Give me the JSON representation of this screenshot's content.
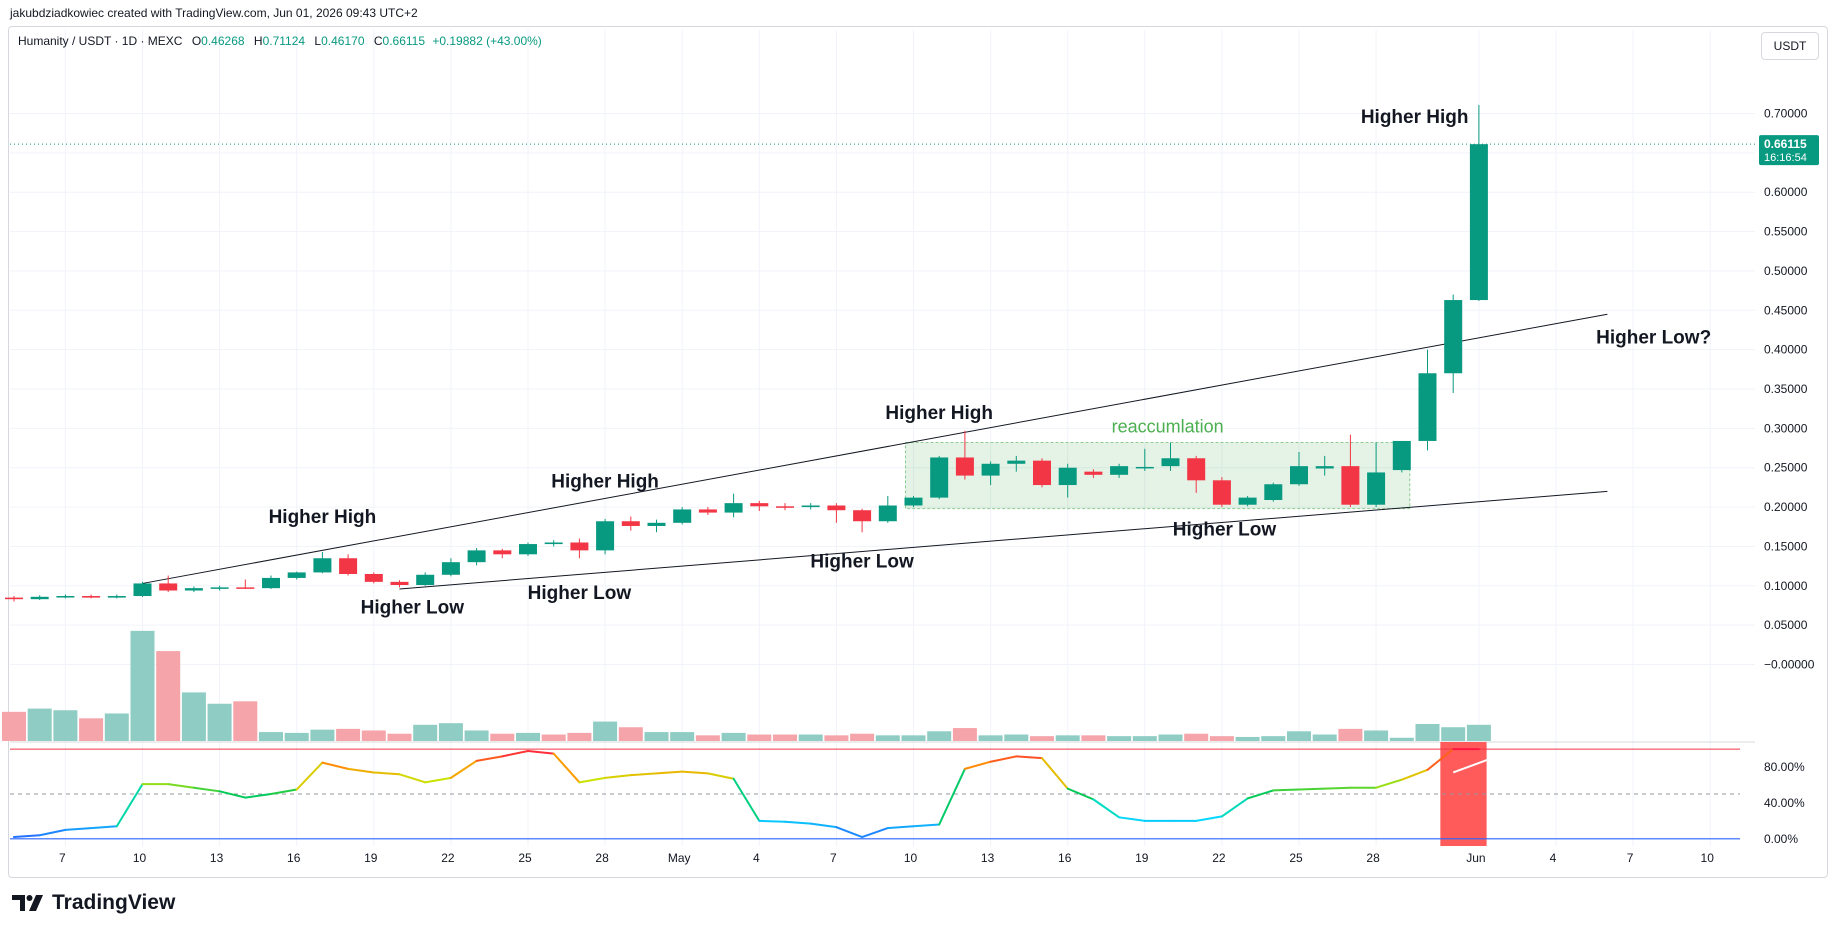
{
  "credit": "jakubdziadkowiec created with TradingView.com, Jun 01, 2026 09:43 UTC+2",
  "legend": {
    "symbol": "Humanity / USDT · 1D · MEXC",
    "o_label": "O",
    "o": "0.46268",
    "h_label": "H",
    "h": "0.71124",
    "l_label": "L",
    "l": "0.46170",
    "c_label": "C",
    "c": "0.66115",
    "change": "+0.19882 (+43.00%)"
  },
  "currency_button": "USDT",
  "price_tag": {
    "price": "0.66115",
    "countdown": "16:16:54"
  },
  "footer_brand": "TradingView",
  "colors": {
    "up": "#089981",
    "down": "#f23645",
    "vol_up": "#8fcdc4",
    "vol_down": "#f5a5aa",
    "box": "#4caf50"
  },
  "chart_data": {
    "type": "candlestick",
    "price_axis": {
      "ylim": [
        -0.04,
        0.74
      ],
      "ticks": [
        0.7,
        0.65,
        0.6,
        0.55,
        0.5,
        0.45,
        0.4,
        0.35,
        0.3,
        0.25,
        0.2,
        0.15,
        0.1,
        0.05,
        0.0
      ],
      "tick_labels": [
        "0.70000",
        "0.65000",
        "0.60000",
        "0.55000",
        "0.50000",
        "0.45000",
        "0.40000",
        "0.35000",
        "0.30000",
        "0.25000",
        "0.20000",
        "0.15000",
        "0.10000",
        "0.05000",
        "−0.00000"
      ]
    },
    "x_axis": {
      "labels": [
        {
          "i": 2,
          "text": "7"
        },
        {
          "i": 5,
          "text": "10"
        },
        {
          "i": 8,
          "text": "13"
        },
        {
          "i": 11,
          "text": "16"
        },
        {
          "i": 14,
          "text": "19"
        },
        {
          "i": 17,
          "text": "22"
        },
        {
          "i": 20,
          "text": "25"
        },
        {
          "i": 23,
          "text": "28"
        },
        {
          "i": 26,
          "text": "May"
        },
        {
          "i": 29,
          "text": "4"
        },
        {
          "i": 32,
          "text": "7"
        },
        {
          "i": 35,
          "text": "10"
        },
        {
          "i": 38,
          "text": "13"
        },
        {
          "i": 41,
          "text": "16"
        },
        {
          "i": 44,
          "text": "19"
        },
        {
          "i": 47,
          "text": "22"
        },
        {
          "i": 50,
          "text": "25"
        },
        {
          "i": 53,
          "text": "28"
        },
        {
          "i": 57,
          "text": "Jun"
        },
        {
          "i": 60,
          "text": "4"
        },
        {
          "i": 63,
          "text": "7"
        },
        {
          "i": 66,
          "text": "10"
        }
      ]
    },
    "candles": [
      {
        "o": 0.085,
        "h": 0.087,
        "l": 0.08,
        "c": 0.083
      },
      {
        "o": 0.083,
        "h": 0.088,
        "l": 0.082,
        "c": 0.086
      },
      {
        "o": 0.086,
        "h": 0.089,
        "l": 0.084,
        "c": 0.087
      },
      {
        "o": 0.087,
        "h": 0.089,
        "l": 0.084,
        "c": 0.085
      },
      {
        "o": 0.085,
        "h": 0.089,
        "l": 0.084,
        "c": 0.087
      },
      {
        "o": 0.087,
        "h": 0.105,
        "l": 0.086,
        "c": 0.103
      },
      {
        "o": 0.103,
        "h": 0.113,
        "l": 0.092,
        "c": 0.094
      },
      {
        "o": 0.094,
        "h": 0.099,
        "l": 0.092,
        "c": 0.097
      },
      {
        "o": 0.097,
        "h": 0.1,
        "l": 0.094,
        "c": 0.098
      },
      {
        "o": 0.098,
        "h": 0.108,
        "l": 0.096,
        "c": 0.097
      },
      {
        "o": 0.097,
        "h": 0.113,
        "l": 0.096,
        "c": 0.11
      },
      {
        "o": 0.11,
        "h": 0.118,
        "l": 0.108,
        "c": 0.117
      },
      {
        "o": 0.117,
        "h": 0.143,
        "l": 0.116,
        "c": 0.135
      },
      {
        "o": 0.135,
        "h": 0.14,
        "l": 0.113,
        "c": 0.115
      },
      {
        "o": 0.115,
        "h": 0.117,
        "l": 0.103,
        "c": 0.105
      },
      {
        "o": 0.105,
        "h": 0.107,
        "l": 0.098,
        "c": 0.101
      },
      {
        "o": 0.101,
        "h": 0.117,
        "l": 0.1,
        "c": 0.114
      },
      {
        "o": 0.114,
        "h": 0.135,
        "l": 0.112,
        "c": 0.13
      },
      {
        "o": 0.13,
        "h": 0.148,
        "l": 0.126,
        "c": 0.145
      },
      {
        "o": 0.145,
        "h": 0.147,
        "l": 0.135,
        "c": 0.14
      },
      {
        "o": 0.14,
        "h": 0.155,
        "l": 0.138,
        "c": 0.153
      },
      {
        "o": 0.153,
        "h": 0.158,
        "l": 0.15,
        "c": 0.155
      },
      {
        "o": 0.155,
        "h": 0.16,
        "l": 0.135,
        "c": 0.145
      },
      {
        "o": 0.145,
        "h": 0.185,
        "l": 0.14,
        "c": 0.182
      },
      {
        "o": 0.182,
        "h": 0.188,
        "l": 0.17,
        "c": 0.176
      },
      {
        "o": 0.176,
        "h": 0.184,
        "l": 0.168,
        "c": 0.18
      },
      {
        "o": 0.18,
        "h": 0.2,
        "l": 0.178,
        "c": 0.197
      },
      {
        "o": 0.197,
        "h": 0.2,
        "l": 0.19,
        "c": 0.193
      },
      {
        "o": 0.193,
        "h": 0.217,
        "l": 0.187,
        "c": 0.205
      },
      {
        "o": 0.205,
        "h": 0.208,
        "l": 0.195,
        "c": 0.201
      },
      {
        "o": 0.201,
        "h": 0.205,
        "l": 0.196,
        "c": 0.2
      },
      {
        "o": 0.2,
        "h": 0.205,
        "l": 0.197,
        "c": 0.202
      },
      {
        "o": 0.202,
        "h": 0.205,
        "l": 0.18,
        "c": 0.196
      },
      {
        "o": 0.196,
        "h": 0.198,
        "l": 0.168,
        "c": 0.182
      },
      {
        "o": 0.182,
        "h": 0.214,
        "l": 0.18,
        "c": 0.202
      },
      {
        "o": 0.202,
        "h": 0.214,
        "l": 0.2,
        "c": 0.212
      },
      {
        "o": 0.212,
        "h": 0.265,
        "l": 0.21,
        "c": 0.263
      },
      {
        "o": 0.263,
        "h": 0.297,
        "l": 0.235,
        "c": 0.24
      },
      {
        "o": 0.24,
        "h": 0.258,
        "l": 0.228,
        "c": 0.255
      },
      {
        "o": 0.255,
        "h": 0.265,
        "l": 0.245,
        "c": 0.259
      },
      {
        "o": 0.259,
        "h": 0.262,
        "l": 0.225,
        "c": 0.228
      },
      {
        "o": 0.228,
        "h": 0.255,
        "l": 0.212,
        "c": 0.25
      },
      {
        "o": 0.245,
        "h": 0.248,
        "l": 0.237,
        "c": 0.241
      },
      {
        "o": 0.241,
        "h": 0.255,
        "l": 0.237,
        "c": 0.252
      },
      {
        "o": 0.25,
        "h": 0.274,
        "l": 0.246,
        "c": 0.251
      },
      {
        "o": 0.252,
        "h": 0.282,
        "l": 0.246,
        "c": 0.262
      },
      {
        "o": 0.262,
        "h": 0.265,
        "l": 0.218,
        "c": 0.234
      },
      {
        "o": 0.234,
        "h": 0.238,
        "l": 0.2,
        "c": 0.203
      },
      {
        "o": 0.203,
        "h": 0.214,
        "l": 0.201,
        "c": 0.212
      },
      {
        "o": 0.209,
        "h": 0.231,
        "l": 0.207,
        "c": 0.229
      },
      {
        "o": 0.229,
        "h": 0.27,
        "l": 0.227,
        "c": 0.252
      },
      {
        "o": 0.249,
        "h": 0.265,
        "l": 0.24,
        "c": 0.252
      },
      {
        "o": 0.252,
        "h": 0.292,
        "l": 0.2,
        "c": 0.203
      },
      {
        "o": 0.203,
        "h": 0.282,
        "l": 0.2,
        "c": 0.244
      },
      {
        "o": 0.247,
        "h": 0.284,
        "l": 0.244,
        "c": 0.284
      },
      {
        "o": 0.284,
        "h": 0.4,
        "l": 0.272,
        "c": 0.37
      },
      {
        "o": 0.37,
        "h": 0.47,
        "l": 0.345,
        "c": 0.463
      },
      {
        "o": 0.463,
        "h": 0.711,
        "l": 0.462,
        "c": 0.661
      }
    ],
    "volume": [
      {
        "v": 0.36,
        "up": false
      },
      {
        "v": 0.4,
        "up": true
      },
      {
        "v": 0.38,
        "up": true
      },
      {
        "v": 0.28,
        "up": false
      },
      {
        "v": 0.34,
        "up": true
      },
      {
        "v": 1.36,
        "up": true
      },
      {
        "v": 1.11,
        "up": false
      },
      {
        "v": 0.6,
        "up": true
      },
      {
        "v": 0.46,
        "up": true
      },
      {
        "v": 0.49,
        "up": false
      },
      {
        "v": 0.11,
        "up": true
      },
      {
        "v": 0.1,
        "up": true
      },
      {
        "v": 0.14,
        "up": true
      },
      {
        "v": 0.15,
        "up": false
      },
      {
        "v": 0.13,
        "up": false
      },
      {
        "v": 0.09,
        "up": false
      },
      {
        "v": 0.2,
        "up": true
      },
      {
        "v": 0.22,
        "up": true
      },
      {
        "v": 0.13,
        "up": true
      },
      {
        "v": 0.09,
        "up": false
      },
      {
        "v": 0.1,
        "up": true
      },
      {
        "v": 0.08,
        "up": false
      },
      {
        "v": 0.1,
        "up": false
      },
      {
        "v": 0.24,
        "up": true
      },
      {
        "v": 0.17,
        "up": false
      },
      {
        "v": 0.11,
        "up": true
      },
      {
        "v": 0.11,
        "up": true
      },
      {
        "v": 0.07,
        "up": false
      },
      {
        "v": 0.1,
        "up": true
      },
      {
        "v": 0.08,
        "up": false
      },
      {
        "v": 0.08,
        "up": false
      },
      {
        "v": 0.08,
        "up": true
      },
      {
        "v": 0.07,
        "up": false
      },
      {
        "v": 0.09,
        "up": false
      },
      {
        "v": 0.07,
        "up": true
      },
      {
        "v": 0.07,
        "up": true
      },
      {
        "v": 0.12,
        "up": true
      },
      {
        "v": 0.16,
        "up": false
      },
      {
        "v": 0.07,
        "up": true
      },
      {
        "v": 0.08,
        "up": true
      },
      {
        "v": 0.06,
        "up": false
      },
      {
        "v": 0.07,
        "up": true
      },
      {
        "v": 0.07,
        "up": false
      },
      {
        "v": 0.06,
        "up": true
      },
      {
        "v": 0.06,
        "up": true
      },
      {
        "v": 0.08,
        "up": true
      },
      {
        "v": 0.09,
        "up": false
      },
      {
        "v": 0.06,
        "up": false
      },
      {
        "v": 0.05,
        "up": true
      },
      {
        "v": 0.06,
        "up": true
      },
      {
        "v": 0.12,
        "up": true
      },
      {
        "v": 0.08,
        "up": true
      },
      {
        "v": 0.15,
        "up": false
      },
      {
        "v": 0.13,
        "up": true
      },
      {
        "v": 0.04,
        "up": true
      },
      {
        "v": 0.21,
        "up": true
      },
      {
        "v": 0.17,
        "up": true
      },
      {
        "v": 0.2,
        "up": true
      }
    ],
    "oscillator": {
      "ylim": [
        -8,
        108
      ],
      "ticks": [
        80,
        40,
        0
      ],
      "tick_labels": [
        "80.00%",
        "40.00%",
        "0.00%"
      ],
      "upper_line": 100,
      "mid_line": 50,
      "values": [
        2,
        4,
        10,
        12,
        14,
        61,
        61,
        57,
        53,
        46,
        50,
        55,
        85,
        78,
        74,
        72,
        63,
        68,
        87,
        92,
        98,
        95,
        63,
        68,
        71,
        73,
        75,
        73,
        67,
        20,
        19,
        17,
        13,
        2,
        12,
        14,
        16,
        78,
        86,
        92,
        90,
        56,
        44,
        24,
        20,
        20,
        20,
        25,
        45,
        54,
        55,
        56,
        57,
        57,
        66,
        77,
        100,
        100
      ],
      "signal": [
        74,
        92
      ],
      "signal_from_index": 56
    },
    "trendlines": [
      {
        "from": {
          "i": 5,
          "p": 0.103
        },
        "to": {
          "i": 62,
          "p": 0.445
        }
      },
      {
        "from": {
          "i": 15,
          "p": 0.096
        },
        "to": {
          "i": 62,
          "p": 0.22
        }
      }
    ],
    "range_box": {
      "i_from": 35,
      "i_to": 54,
      "p_low": 0.198,
      "p_high": 0.282,
      "label": "reaccumlation"
    },
    "annotations": [
      {
        "text": "Higher High",
        "i": 12,
        "p": 0.18
      },
      {
        "text": "Higher Low",
        "i": 15.5,
        "p": 0.065
      },
      {
        "text": "Higher High",
        "i": 23,
        "p": 0.225
      },
      {
        "text": "Higher Low",
        "i": 22,
        "p": 0.083
      },
      {
        "text": "Higher Low",
        "i": 33,
        "p": 0.123
      },
      {
        "text": "Higher High",
        "i": 36,
        "p": 0.312
      },
      {
        "text": "Higher Low",
        "i": 47.1,
        "p": 0.164
      },
      {
        "text": "Higher High",
        "i": 54.5,
        "p": 0.688
      },
      {
        "text": "Higher Low?",
        "i": 63.8,
        "p": 0.408
      }
    ]
  }
}
